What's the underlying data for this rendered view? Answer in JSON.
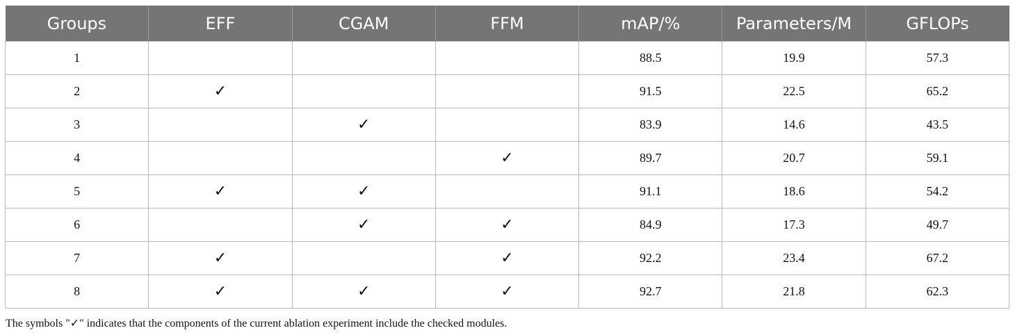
{
  "table": {
    "headers": [
      "Groups",
      "EFF",
      "CGAM",
      "FFM",
      "mAP/%",
      "Parameters/M",
      "GFLOPs"
    ],
    "check_symbol": "✓",
    "rows": [
      {
        "group": "1",
        "eff": false,
        "cgam": false,
        "ffm": false,
        "map": "88.5",
        "params": "19.9",
        "gflops": "57.3"
      },
      {
        "group": "2",
        "eff": true,
        "cgam": false,
        "ffm": false,
        "map": "91.5",
        "params": "22.5",
        "gflops": "65.2"
      },
      {
        "group": "3",
        "eff": false,
        "cgam": true,
        "ffm": false,
        "map": "83.9",
        "params": "14.6",
        "gflops": "43.5"
      },
      {
        "group": "4",
        "eff": false,
        "cgam": false,
        "ffm": true,
        "map": "89.7",
        "params": "20.7",
        "gflops": "59.1"
      },
      {
        "group": "5",
        "eff": true,
        "cgam": true,
        "ffm": false,
        "map": "91.1",
        "params": "18.6",
        "gflops": "54.2"
      },
      {
        "group": "6",
        "eff": false,
        "cgam": true,
        "ffm": true,
        "map": "84.9",
        "params": "17.3",
        "gflops": "49.7"
      },
      {
        "group": "7",
        "eff": true,
        "cgam": false,
        "ffm": true,
        "map": "92.2",
        "params": "23.4",
        "gflops": "67.2"
      },
      {
        "group": "8",
        "eff": true,
        "cgam": true,
        "ffm": true,
        "map": "92.7",
        "params": "21.8",
        "gflops": "62.3"
      }
    ]
  },
  "footnote": {
    "prefix": "The symbols \"",
    "symbol": "✓",
    "suffix": "\" indicates that the components of the current ablation experiment include the checked modules."
  },
  "colors": {
    "header_bg": "#757575",
    "header_text": "#ffffff",
    "grid": "#b8b8b8"
  }
}
